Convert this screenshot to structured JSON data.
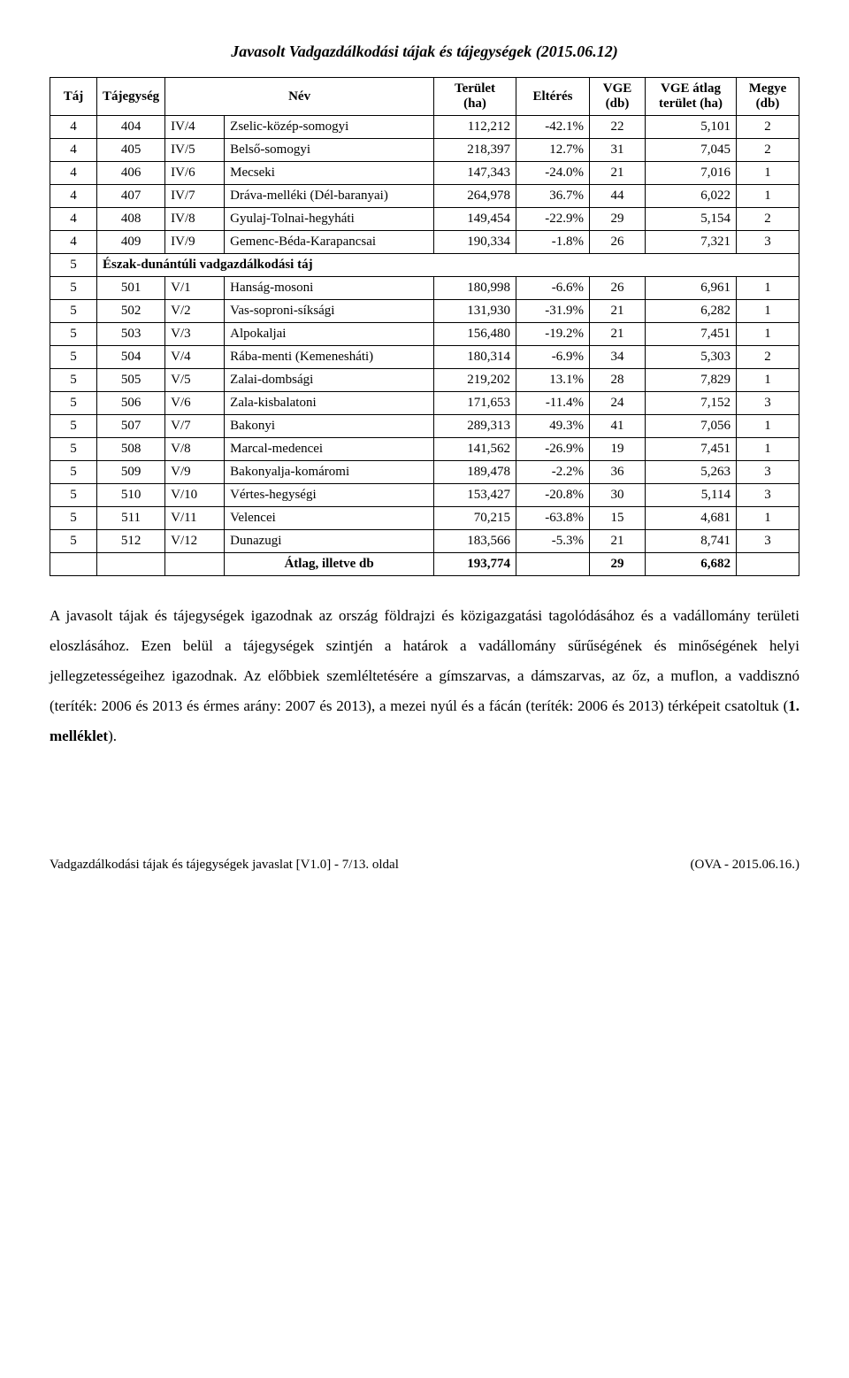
{
  "title": "Javasolt Vadgazdálkodási tájak és tájegységek (2015.06.12)",
  "headers": {
    "taj": "Táj",
    "tajegyseg": "Tájegység",
    "nev": "Név",
    "terulet": "Terület\n(ha)",
    "elteres": "Eltérés",
    "vge": "VGE\n(db)",
    "vge_atlag": "VGE átlag\nterület (ha)",
    "megye": "Megye\n(db)"
  },
  "rows": [
    {
      "taj": "4",
      "te": "404",
      "code": "IV/4",
      "name": "Zselic-közép-somogyi",
      "area": "112,212",
      "dev": "-42.1%",
      "vge": "22",
      "avg": "5,101",
      "meg": "2"
    },
    {
      "taj": "4",
      "te": "405",
      "code": "IV/5",
      "name": "Belső-somogyi",
      "area": "218,397",
      "dev": "12.7%",
      "vge": "31",
      "avg": "7,045",
      "meg": "2"
    },
    {
      "taj": "4",
      "te": "406",
      "code": "IV/6",
      "name": "Mecseki",
      "area": "147,343",
      "dev": "-24.0%",
      "vge": "21",
      "avg": "7,016",
      "meg": "1"
    },
    {
      "taj": "4",
      "te": "407",
      "code": "IV/7",
      "name": "Dráva-melléki (Dél-baranyai)",
      "area": "264,978",
      "dev": "36.7%",
      "vge": "44",
      "avg": "6,022",
      "meg": "1"
    },
    {
      "taj": "4",
      "te": "408",
      "code": "IV/8",
      "name": "Gyulaj-Tolnai-hegyháti",
      "area": "149,454",
      "dev": "-22.9%",
      "vge": "29",
      "avg": "5,154",
      "meg": "2"
    },
    {
      "taj": "4",
      "te": "409",
      "code": "IV/9",
      "name": "Gemenc-Béda-Karapancsai",
      "area": "190,334",
      "dev": "-1.8%",
      "vge": "26",
      "avg": "7,321",
      "meg": "3"
    },
    {
      "section": true,
      "taj": "5",
      "label": "Észak-dunántúli vadgazdálkodási táj"
    },
    {
      "taj": "5",
      "te": "501",
      "code": "V/1",
      "name": "Hanság-mosoni",
      "area": "180,998",
      "dev": "-6.6%",
      "vge": "26",
      "avg": "6,961",
      "meg": "1"
    },
    {
      "taj": "5",
      "te": "502",
      "code": "V/2",
      "name": "Vas-soproni-síksági",
      "area": "131,930",
      "dev": "-31.9%",
      "vge": "21",
      "avg": "6,282",
      "meg": "1"
    },
    {
      "taj": "5",
      "te": "503",
      "code": "V/3",
      "name": "Alpokaljai",
      "area": "156,480",
      "dev": "-19.2%",
      "vge": "21",
      "avg": "7,451",
      "meg": "1"
    },
    {
      "taj": "5",
      "te": "504",
      "code": "V/4",
      "name": "Rába-menti (Kemenesháti)",
      "area": "180,314",
      "dev": "-6.9%",
      "vge": "34",
      "avg": "5,303",
      "meg": "2"
    },
    {
      "taj": "5",
      "te": "505",
      "code": "V/5",
      "name": "Zalai-dombsági",
      "area": "219,202",
      "dev": "13.1%",
      "vge": "28",
      "avg": "7,829",
      "meg": "1"
    },
    {
      "taj": "5",
      "te": "506",
      "code": "V/6",
      "name": "Zala-kisbalatoni",
      "area": "171,653",
      "dev": "-11.4%",
      "vge": "24",
      "avg": "7,152",
      "meg": "3"
    },
    {
      "taj": "5",
      "te": "507",
      "code": "V/7",
      "name": "Bakonyi",
      "area": "289,313",
      "dev": "49.3%",
      "vge": "41",
      "avg": "7,056",
      "meg": "1"
    },
    {
      "taj": "5",
      "te": "508",
      "code": "V/8",
      "name": "Marcal-medencei",
      "area": "141,562",
      "dev": "-26.9%",
      "vge": "19",
      "avg": "7,451",
      "meg": "1"
    },
    {
      "taj": "5",
      "te": "509",
      "code": "V/9",
      "name": "Bakonyalja-komáromi",
      "area": "189,478",
      "dev": "-2.2%",
      "vge": "36",
      "avg": "5,263",
      "meg": "3"
    },
    {
      "taj": "5",
      "te": "510",
      "code": "V/10",
      "name": "Vértes-hegységi",
      "area": "153,427",
      "dev": "-20.8%",
      "vge": "30",
      "avg": "5,114",
      "meg": "3"
    },
    {
      "taj": "5",
      "te": "511",
      "code": "V/11",
      "name": "Velencei",
      "area": "70,215",
      "dev": "-63.8%",
      "vge": "15",
      "avg": "4,681",
      "meg": "1"
    },
    {
      "taj": "5",
      "te": "512",
      "code": "V/12",
      "name": "Dunazugi",
      "area": "183,566",
      "dev": "-5.3%",
      "vge": "21",
      "avg": "8,741",
      "meg": "3"
    }
  ],
  "summary": {
    "label": "Átlag, illetve db",
    "area": "193,774",
    "dev": "",
    "vge": "29",
    "avg": "6,682",
    "meg": ""
  },
  "paragraph_parts": {
    "p1": "A javasolt tájak és tájegységek igazodnak az ország földrajzi és közigazgatási tagolódásához és a vadállomány területi eloszlásához. Ezen belül a tájegységek szintjén a határok a vadállomány sűrűségének és minőségének helyi jellegzetességeihez igazodnak. Az előbbiek szemléltetésére a gímszarvas, a dámszarvas, az őz, a muflon, a vaddisznó (teríték: 2006 és 2013 és érmes arány: 2007 és 2013), a mezei nyúl és a fácán (teríték: 2006 és 2013) térképeit csatoltuk (",
    "bold": "1. melléklet",
    "p2": ")."
  },
  "footer": {
    "left": "Vadgazdálkodási tájak és tájegységek javaslat [V1.0] - 7/13. oldal",
    "right": "(OVA - 2015.06.16.)"
  }
}
